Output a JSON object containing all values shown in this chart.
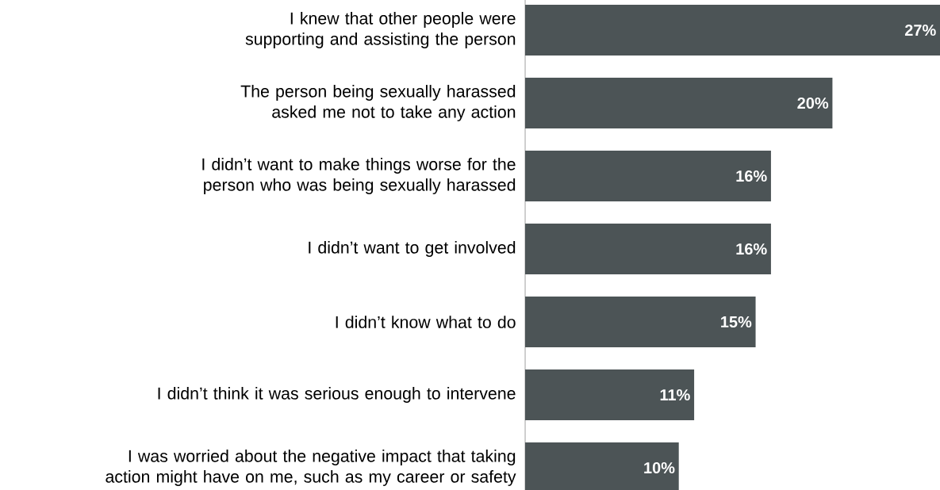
{
  "chart_data": {
    "type": "bar",
    "orientation": "horizontal",
    "color": "#4c5456",
    "categories": [
      "I knew that other people were supporting and assisting the person",
      "The person being sexually harassed asked me not to take any action",
      "I didn’t want to make things worse for the person who was being sexually harassed",
      "I didn’t want to get involved",
      "I didn’t know what to do",
      "I didn’t think it was serious enough to intervene",
      "I was worried about the negative impact that taking action might have on me, such as my career or safety"
    ],
    "values": [
      27,
      20,
      16,
      16,
      15,
      11,
      10
    ],
    "value_labels": [
      "27%",
      "20%",
      "16%",
      "16%",
      "15%",
      "11%",
      "10%"
    ]
  }
}
